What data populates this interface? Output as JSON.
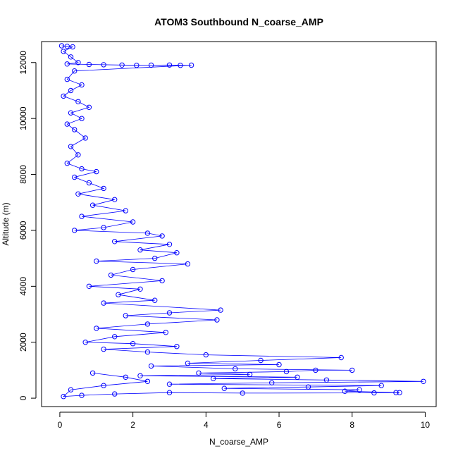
{
  "chart_data": {
    "type": "scatter",
    "title": "ATOM3 Southbound N_coarse_AMP",
    "xlabel": "N_coarse_AMP",
    "ylabel": "Altitude (m)",
    "xlim": [
      -0.5,
      10.3
    ],
    "ylim": [
      -300,
      12750
    ],
    "x_ticks": [
      0,
      2,
      4,
      6,
      8,
      10
    ],
    "y_ticks": [
      0,
      2000,
      4000,
      6000,
      8000,
      10000,
      12000
    ],
    "grid": false,
    "legend": "none",
    "marker": "open-circle",
    "connect_points": true,
    "color": "#0000ff",
    "series": [
      {
        "name": "",
        "points": [
          [
            0.05,
            12600
          ],
          [
            0.2,
            12580
          ],
          [
            0.35,
            12560
          ],
          [
            0.1,
            12400
          ],
          [
            0.3,
            12200
          ],
          [
            0.5,
            12000
          ],
          [
            0.2,
            11950
          ],
          [
            0.8,
            11930
          ],
          [
            1.2,
            11920
          ],
          [
            1.7,
            11910
          ],
          [
            2.1,
            11900
          ],
          [
            2.5,
            11905
          ],
          [
            3.0,
            11910
          ],
          [
            3.3,
            11900
          ],
          [
            3.6,
            11905
          ],
          [
            0.4,
            11700
          ],
          [
            0.2,
            11400
          ],
          [
            0.6,
            11200
          ],
          [
            0.3,
            11000
          ],
          [
            0.1,
            10800
          ],
          [
            0.5,
            10600
          ],
          [
            0.8,
            10400
          ],
          [
            0.3,
            10200
          ],
          [
            0.6,
            10000
          ],
          [
            0.2,
            9800
          ],
          [
            0.4,
            9600
          ],
          [
            0.7,
            9300
          ],
          [
            0.3,
            9000
          ],
          [
            0.5,
            8700
          ],
          [
            0.2,
            8400
          ],
          [
            0.6,
            8200
          ],
          [
            1.0,
            8100
          ],
          [
            0.4,
            7900
          ],
          [
            0.8,
            7700
          ],
          [
            1.2,
            7500
          ],
          [
            0.5,
            7300
          ],
          [
            1.5,
            7100
          ],
          [
            0.9,
            6900
          ],
          [
            1.8,
            6700
          ],
          [
            0.6,
            6500
          ],
          [
            2.0,
            6300
          ],
          [
            1.2,
            6100
          ],
          [
            0.4,
            6000
          ],
          [
            2.4,
            5900
          ],
          [
            2.8,
            5800
          ],
          [
            1.5,
            5600
          ],
          [
            3.0,
            5500
          ],
          [
            2.2,
            5300
          ],
          [
            3.2,
            5200
          ],
          [
            2.6,
            5000
          ],
          [
            1.0,
            4900
          ],
          [
            3.5,
            4800
          ],
          [
            2.0,
            4600
          ],
          [
            1.4,
            4400
          ],
          [
            2.8,
            4200
          ],
          [
            0.8,
            4000
          ],
          [
            2.2,
            3900
          ],
          [
            1.6,
            3700
          ],
          [
            2.6,
            3500
          ],
          [
            1.2,
            3400
          ],
          [
            4.4,
            3150
          ],
          [
            3.0,
            3050
          ],
          [
            1.8,
            2950
          ],
          [
            4.3,
            2800
          ],
          [
            2.4,
            2650
          ],
          [
            1.0,
            2500
          ],
          [
            2.9,
            2350
          ],
          [
            1.5,
            2200
          ],
          [
            0.7,
            2000
          ],
          [
            2.0,
            1950
          ],
          [
            3.2,
            1850
          ],
          [
            1.2,
            1750
          ],
          [
            2.4,
            1650
          ],
          [
            4.0,
            1550
          ],
          [
            7.7,
            1450
          ],
          [
            5.5,
            1350
          ],
          [
            3.5,
            1250
          ],
          [
            6.0,
            1200
          ],
          [
            2.5,
            1150
          ],
          [
            4.8,
            1050
          ],
          [
            8.0,
            1000
          ],
          [
            7.0,
            1000
          ],
          [
            6.2,
            950
          ],
          [
            3.8,
            900
          ],
          [
            5.2,
            850
          ],
          [
            2.2,
            800
          ],
          [
            6.5,
            750
          ],
          [
            4.2,
            700
          ],
          [
            7.3,
            650
          ],
          [
            9.95,
            600
          ],
          [
            5.8,
            550
          ],
          [
            3.0,
            500
          ],
          [
            8.8,
            450
          ],
          [
            6.8,
            400
          ],
          [
            4.5,
            350
          ],
          [
            8.2,
            300
          ],
          [
            7.8,
            250
          ],
          [
            9.3,
            200
          ],
          [
            9.2,
            200
          ],
          [
            8.6,
            190
          ],
          [
            5.0,
            180
          ],
          [
            3.0,
            200
          ],
          [
            1.5,
            150
          ],
          [
            0.6,
            100
          ],
          [
            0.1,
            60
          ],
          [
            0.3,
            300
          ],
          [
            1.2,
            450
          ],
          [
            2.4,
            600
          ],
          [
            1.8,
            750
          ],
          [
            0.9,
            900
          ]
        ]
      }
    ]
  }
}
